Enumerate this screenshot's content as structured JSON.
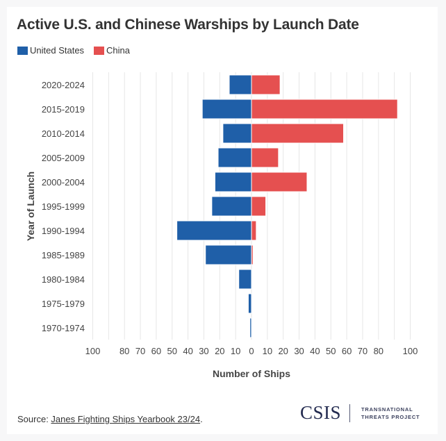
{
  "chart_data": {
    "type": "bar",
    "orientation": "horizontal-diverging",
    "title": "Active U.S. and Chinese Warships by Launch Date",
    "xlabel": "Number of Ships",
    "ylabel": "Year of Launch",
    "xlim": [
      -100,
      100
    ],
    "x_ticks": [
      {
        "value": -100,
        "label": "100"
      },
      {
        "value": -80,
        "label": "80"
      },
      {
        "value": -70,
        "label": "70"
      },
      {
        "value": -60,
        "label": "60"
      },
      {
        "value": -50,
        "label": "50"
      },
      {
        "value": -40,
        "label": "40"
      },
      {
        "value": -30,
        "label": "30"
      },
      {
        "value": -20,
        "label": "20"
      },
      {
        "value": -10,
        "label": "10"
      },
      {
        "value": 0,
        "label": "0"
      },
      {
        "value": 10,
        "label": "10"
      },
      {
        "value": 20,
        "label": "20"
      },
      {
        "value": 30,
        "label": "30"
      },
      {
        "value": 40,
        "label": "40"
      },
      {
        "value": 50,
        "label": "50"
      },
      {
        "value": 60,
        "label": "60"
      },
      {
        "value": 70,
        "label": "70"
      },
      {
        "value": 80,
        "label": "80"
      },
      {
        "value": 100,
        "label": "100"
      }
    ],
    "gridlines": [
      -100,
      -90,
      -80,
      -70,
      -60,
      -50,
      -40,
      -30,
      -20,
      -10,
      0,
      10,
      20,
      30,
      40,
      50,
      60,
      70,
      80,
      90,
      100
    ],
    "grid": true,
    "legend_position": "top-left",
    "categories": [
      "2020-2024",
      "2015-2019",
      "2010-2014",
      "2005-2009",
      "2000-2004",
      "1995-1999",
      "1990-1994",
      "1985-1989",
      "1980-1984",
      "1975-1979",
      "1970-1974"
    ],
    "series": [
      {
        "name": "United States",
        "color": "#1f5fa8",
        "side": "left",
        "values": [
          14,
          31,
          18,
          21,
          23,
          25,
          47,
          29,
          8,
          2,
          1
        ]
      },
      {
        "name": "China",
        "color": "#e55050",
        "side": "right",
        "values": [
          18,
          92,
          58,
          17,
          35,
          9,
          3,
          1,
          0,
          0,
          0
        ]
      }
    ]
  },
  "legend": [
    {
      "label": "United States",
      "color": "#1f5fa8"
    },
    {
      "label": "China",
      "color": "#e55050"
    }
  ],
  "footer": {
    "source_prefix": "Source: ",
    "source_link": "Janes Fighting Ships Yearbook 23/24",
    "source_suffix": ".",
    "logo_main": "CSIS",
    "logo_line1": "TRANSNATIONAL",
    "logo_line2": "THREATS PROJECT"
  }
}
